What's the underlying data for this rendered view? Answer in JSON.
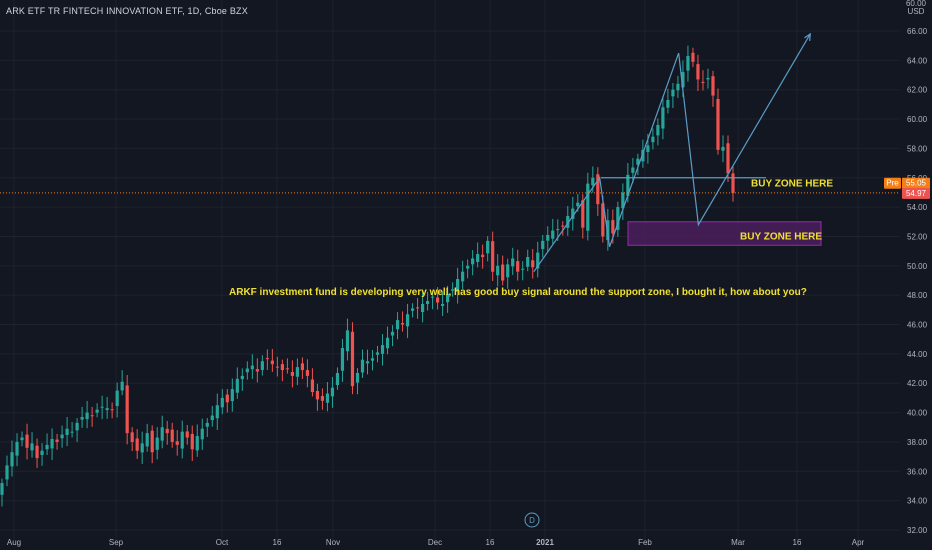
{
  "header": {
    "symbol_title": "ARK ETF TR FINTECH INNOVATION ETF, 1D, Cboe BZX",
    "currency_top": "60.00",
    "currency": "USD"
  },
  "price_tags": {
    "pre_label": "Pre",
    "pre_value": "55.05",
    "last_value": "54.97"
  },
  "annotations": {
    "buy_zone_1": "BUY ZONE HERE",
    "buy_zone_2": "BUY ZONE HERE",
    "comment": "ARKF investment fund is developing very well, has good buy signal around the support zone, I bought it, how about you?",
    "d_marker": "D"
  },
  "colors": {
    "background": "#131722",
    "up": "#26a69a",
    "down": "#ef5350",
    "grid": "#1e222d",
    "drawing": "#5b9cc7",
    "text_yellow": "#f0e130",
    "zone_fill": "#4a1f5c",
    "price_line": "#f57f17",
    "pre_tag": "#f57f17",
    "last_tag": "#ef5350"
  },
  "chart_data": {
    "type": "candlestick",
    "title": "ARK ETF TR FINTECH INNOVATION ETF, 1D, Cboe BZX",
    "ylabel": "USD",
    "ylim": [
      32,
      66.5
    ],
    "y_ticks": [
      "32.00",
      "34.00",
      "36.00",
      "38.00",
      "40.00",
      "42.00",
      "44.00",
      "46.00",
      "48.00",
      "50.00",
      "52.00",
      "54.00",
      "56.00",
      "58.00",
      "60.00",
      "62.00",
      "64.00",
      "66.00"
    ],
    "x_ticks": [
      "Aug",
      "Sep",
      "Oct",
      "16",
      "Nov",
      "Dec",
      "16",
      "2021",
      "Feb",
      "Mar",
      "16",
      "Apr"
    ],
    "grid": true,
    "last_price": 54.97,
    "pre_price": 55.05,
    "closes": [
      35.2,
      36.4,
      37.3,
      38.0,
      38.3,
      37.6,
      37.9,
      36.9,
      37.4,
      37.8,
      38.2,
      38.0,
      38.5,
      38.9,
      38.7,
      39.3,
      39.7,
      40.0,
      39.8,
      40.2,
      40.4,
      40.3,
      40.2,
      41.5,
      42.1,
      38.6,
      38.0,
      37.4,
      37.9,
      38.6,
      37.3,
      38.3,
      39.0,
      38.6,
      38.0,
      37.8,
      38.7,
      38.3,
      37.5,
      38.4,
      38.9,
      39.3,
      39.8,
      40.5,
      41.0,
      40.7,
      41.6,
      42.3,
      42.5,
      43.0,
      43.2,
      42.8,
      43.5,
      43.7,
      43.3,
      43.1,
      42.9,
      43.0,
      42.5,
      43.1,
      42.9,
      42.5,
      41.4,
      40.9,
      40.8,
      41.3,
      41.7,
      42.7,
      44.4,
      45.6,
      41.8,
      42.7,
      43.6,
      43.5,
      43.7,
      44.1,
      44.6,
      45.1,
      45.5,
      46.3,
      46.0,
      46.7,
      47.1,
      47.1,
      47.4,
      47.6,
      47.9,
      47.5,
      47.4,
      48.1,
      48.4,
      49.1,
      49.6,
      50.0,
      50.5,
      50.8,
      50.6,
      51.7,
      49.6,
      50.0,
      49.0,
      50.1,
      50.5,
      49.6,
      49.8,
      50.6,
      49.9,
      50.9,
      51.7,
      52.1,
      52.4,
      52.5,
      52.7,
      53.4,
      53.9,
      54.3,
      52.6,
      55.6,
      56.0,
      54.2,
      52.0,
      53.1,
      52.2,
      54.0,
      55.0,
      56.2,
      56.7,
      57.3,
      57.9,
      58.2,
      58.8,
      59.6,
      60.8,
      61.3,
      62.0,
      62.4,
      63.2,
      64.3,
      63.9,
      62.7,
      62.5,
      62.8,
      61.6,
      57.9,
      58.1,
      56.3,
      54.97
    ],
    "drawn_path": [
      {
        "x_date": "2021-01-06",
        "y": 49.6
      },
      {
        "x_date": "2021-01-26",
        "y": 56.0
      },
      {
        "x_date": "2021-01-29",
        "y": 51.3
      },
      {
        "x_date": "2021-02-19",
        "y": 64.5
      },
      {
        "x_date": "2021-02-25",
        "y": 52.8
      },
      {
        "x_date": "2021-03-31",
        "y": 65.8
      }
    ],
    "support_line": 56.0,
    "buy_zone_box": [
      51.4,
      53.0
    ]
  }
}
